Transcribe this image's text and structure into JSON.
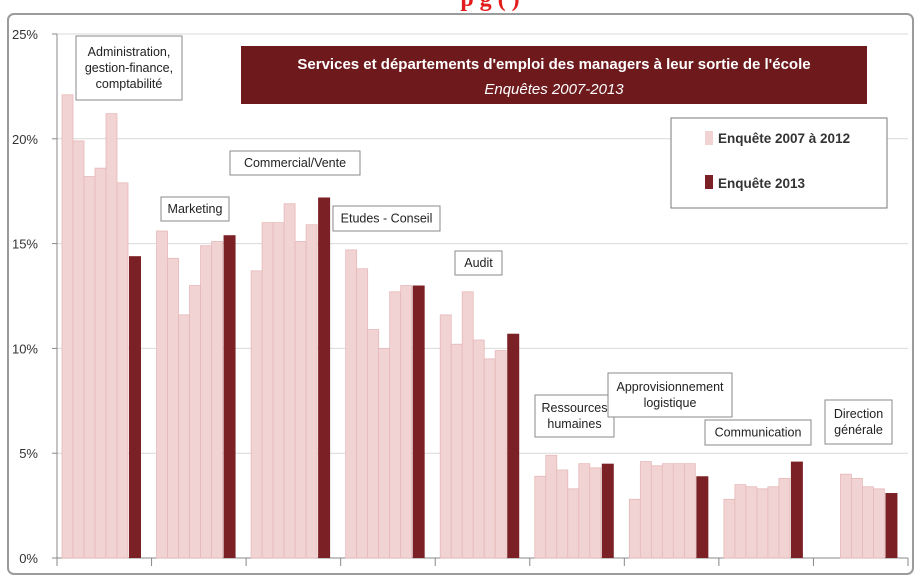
{
  "page_header_fragment": "p                                       g  (    )",
  "chart_data": {
    "type": "bar",
    "title": "Services et départements  d'emploi  des managers à leur sortie de l'école",
    "subtitle": "Enquêtes 2007-2013",
    "xlabel": "",
    "ylabel": "",
    "ylim": [
      0,
      0.25
    ],
    "y_ticks": [
      "0%",
      "5%",
      "10%",
      "15%",
      "20%",
      "25%"
    ],
    "grid": true,
    "legend_position": "top-right",
    "legend": [
      {
        "label": "Enquête 2007 à 2012",
        "color": "#f2d3d3"
      },
      {
        "label": "Enquête 2013",
        "color": "#7b2024"
      }
    ],
    "categories": [
      {
        "label": "Administration, gestion-finance, comptabilité",
        "values_2007_2012": [
          0.221,
          0.199,
          0.182,
          0.186,
          0.212,
          0.179
        ],
        "value_2013": 0.144
      },
      {
        "label": "Marketing",
        "values_2007_2012": [
          0.156,
          0.143,
          0.116,
          0.13,
          0.149,
          0.151
        ],
        "value_2013": 0.154
      },
      {
        "label": "Commercial/Vente",
        "values_2007_2012": [
          0.137,
          0.16,
          0.16,
          0.169,
          0.151,
          0.159
        ],
        "value_2013": 0.172
      },
      {
        "label": "Etudes - Conseil",
        "values_2007_2012": [
          0.147,
          0.138,
          0.109,
          0.1,
          0.127,
          0.13
        ],
        "value_2013": 0.13
      },
      {
        "label": "Audit",
        "values_2007_2012": [
          0.116,
          0.102,
          0.127,
          0.104,
          0.095,
          0.099
        ],
        "value_2013": 0.107
      },
      {
        "label": "Ressources humaines",
        "values_2007_2012": [
          0.039,
          0.049,
          0.042,
          0.033,
          0.045,
          0.043
        ],
        "value_2013": 0.045
      },
      {
        "label": "Approvisionnement logistique",
        "values_2007_2012": [
          0.028,
          0.046,
          0.044,
          0.045,
          0.045,
          0.045
        ],
        "value_2013": 0.039
      },
      {
        "label": "Communication",
        "values_2007_2012": [
          0.028,
          0.035,
          0.034,
          0.033,
          0.034,
          0.038
        ],
        "value_2013": 0.046
      },
      {
        "label": "Direction générale",
        "values_2007_2012": [
          null,
          null,
          0.04,
          0.038,
          0.034,
          0.033
        ],
        "value_2013": 0.031
      }
    ]
  }
}
